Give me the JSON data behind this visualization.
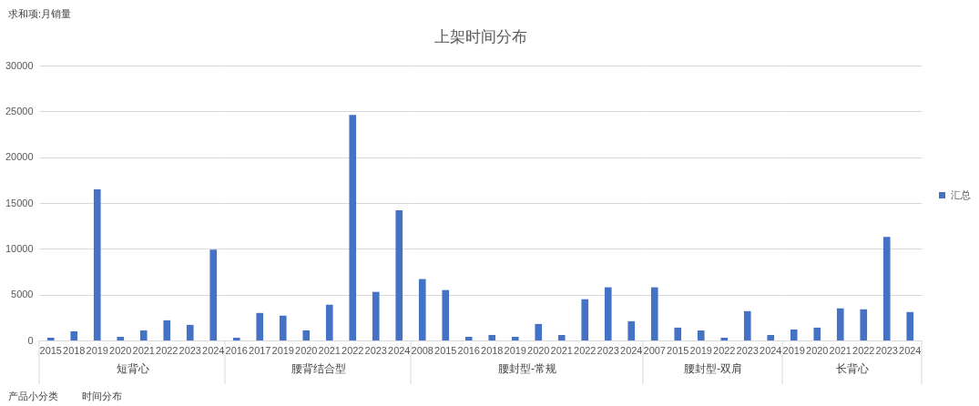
{
  "chart_data": [
    {
      "type": "bar",
      "xlabel": "短背心",
      "categories": [
        "2015",
        "2018",
        "2019",
        "2020",
        "2021",
        "2022",
        "2023",
        "2024"
      ],
      "values": [
        300,
        1000,
        16500,
        400,
        1100,
        2200,
        1700,
        9900
      ],
      "color": "#4472c4",
      "ylim": [
        0,
        30000
      ],
      "yticks": [
        0,
        5000,
        10000,
        15000,
        20000,
        25000,
        30000
      ],
      "grid": "y",
      "annotations": [
        "求和项:月销量",
        "产品小分类",
        "时间分布"
      ]
    },
    {
      "type": "bar",
      "xlabel": "腰背结合型",
      "categories": [
        "2016",
        "2017",
        "2019",
        "2020",
        "2021",
        "2022",
        "2023",
        "2024"
      ],
      "values": [
        300,
        3000,
        2700,
        1100,
        3900,
        24600,
        5300,
        14200
      ],
      "color": "#4472c4",
      "ylim": [
        0,
        30000
      ],
      "yticks": [
        0,
        5000,
        10000,
        15000,
        20000,
        25000,
        30000
      ],
      "grid": "y",
      "tick_labels": "x"
    },
    {
      "type": "bar",
      "title": "上架时间分布",
      "xlabel": "腰封型-常规",
      "categories": [
        "2008",
        "2015",
        "2016",
        "2018",
        "2019",
        "2020",
        "2021",
        "2022",
        "2023",
        "2024"
      ],
      "values": [
        6700,
        5500,
        400,
        600,
        400,
        1800,
        600,
        4500,
        5800,
        2100
      ],
      "color": "#4472c4",
      "ylim": [
        0,
        30000
      ],
      "yticks": [
        0,
        5000,
        10000,
        15000,
        20000,
        25000,
        30000
      ],
      "grid": "y",
      "tick_labels": "x"
    },
    {
      "type": "bar",
      "xlabel": "腰封型-双肩",
      "categories": [
        "2007",
        "2015",
        "2019",
        "2022",
        "2023",
        "2024"
      ],
      "values": [
        5800,
        1400,
        1100,
        300,
        3200,
        600
      ],
      "color": "#4472c4",
      "ylim": [
        0,
        30000
      ],
      "yticks": [
        0,
        5000,
        10000,
        15000,
        20000,
        25000,
        30000
      ],
      "grid": "y",
      "tick_labels": "x"
    },
    {
      "type": "bar",
      "xlabel": "长背心",
      "categories": [
        "2019",
        "2020",
        "2021",
        "2022",
        "2023",
        "2024"
      ],
      "series": [
        {
          "name": "汇总",
          "color": "#4472c4",
          "values": [
            1200,
            1400,
            3500,
            3400,
            11300,
            3100
          ]
        }
      ],
      "ylim": [
        0,
        30000
      ],
      "yticks": [
        0,
        5000,
        10000,
        15000,
        20000,
        25000,
        30000
      ],
      "grid": "y",
      "tick_labels": "x",
      "legend": "right"
    }
  ]
}
